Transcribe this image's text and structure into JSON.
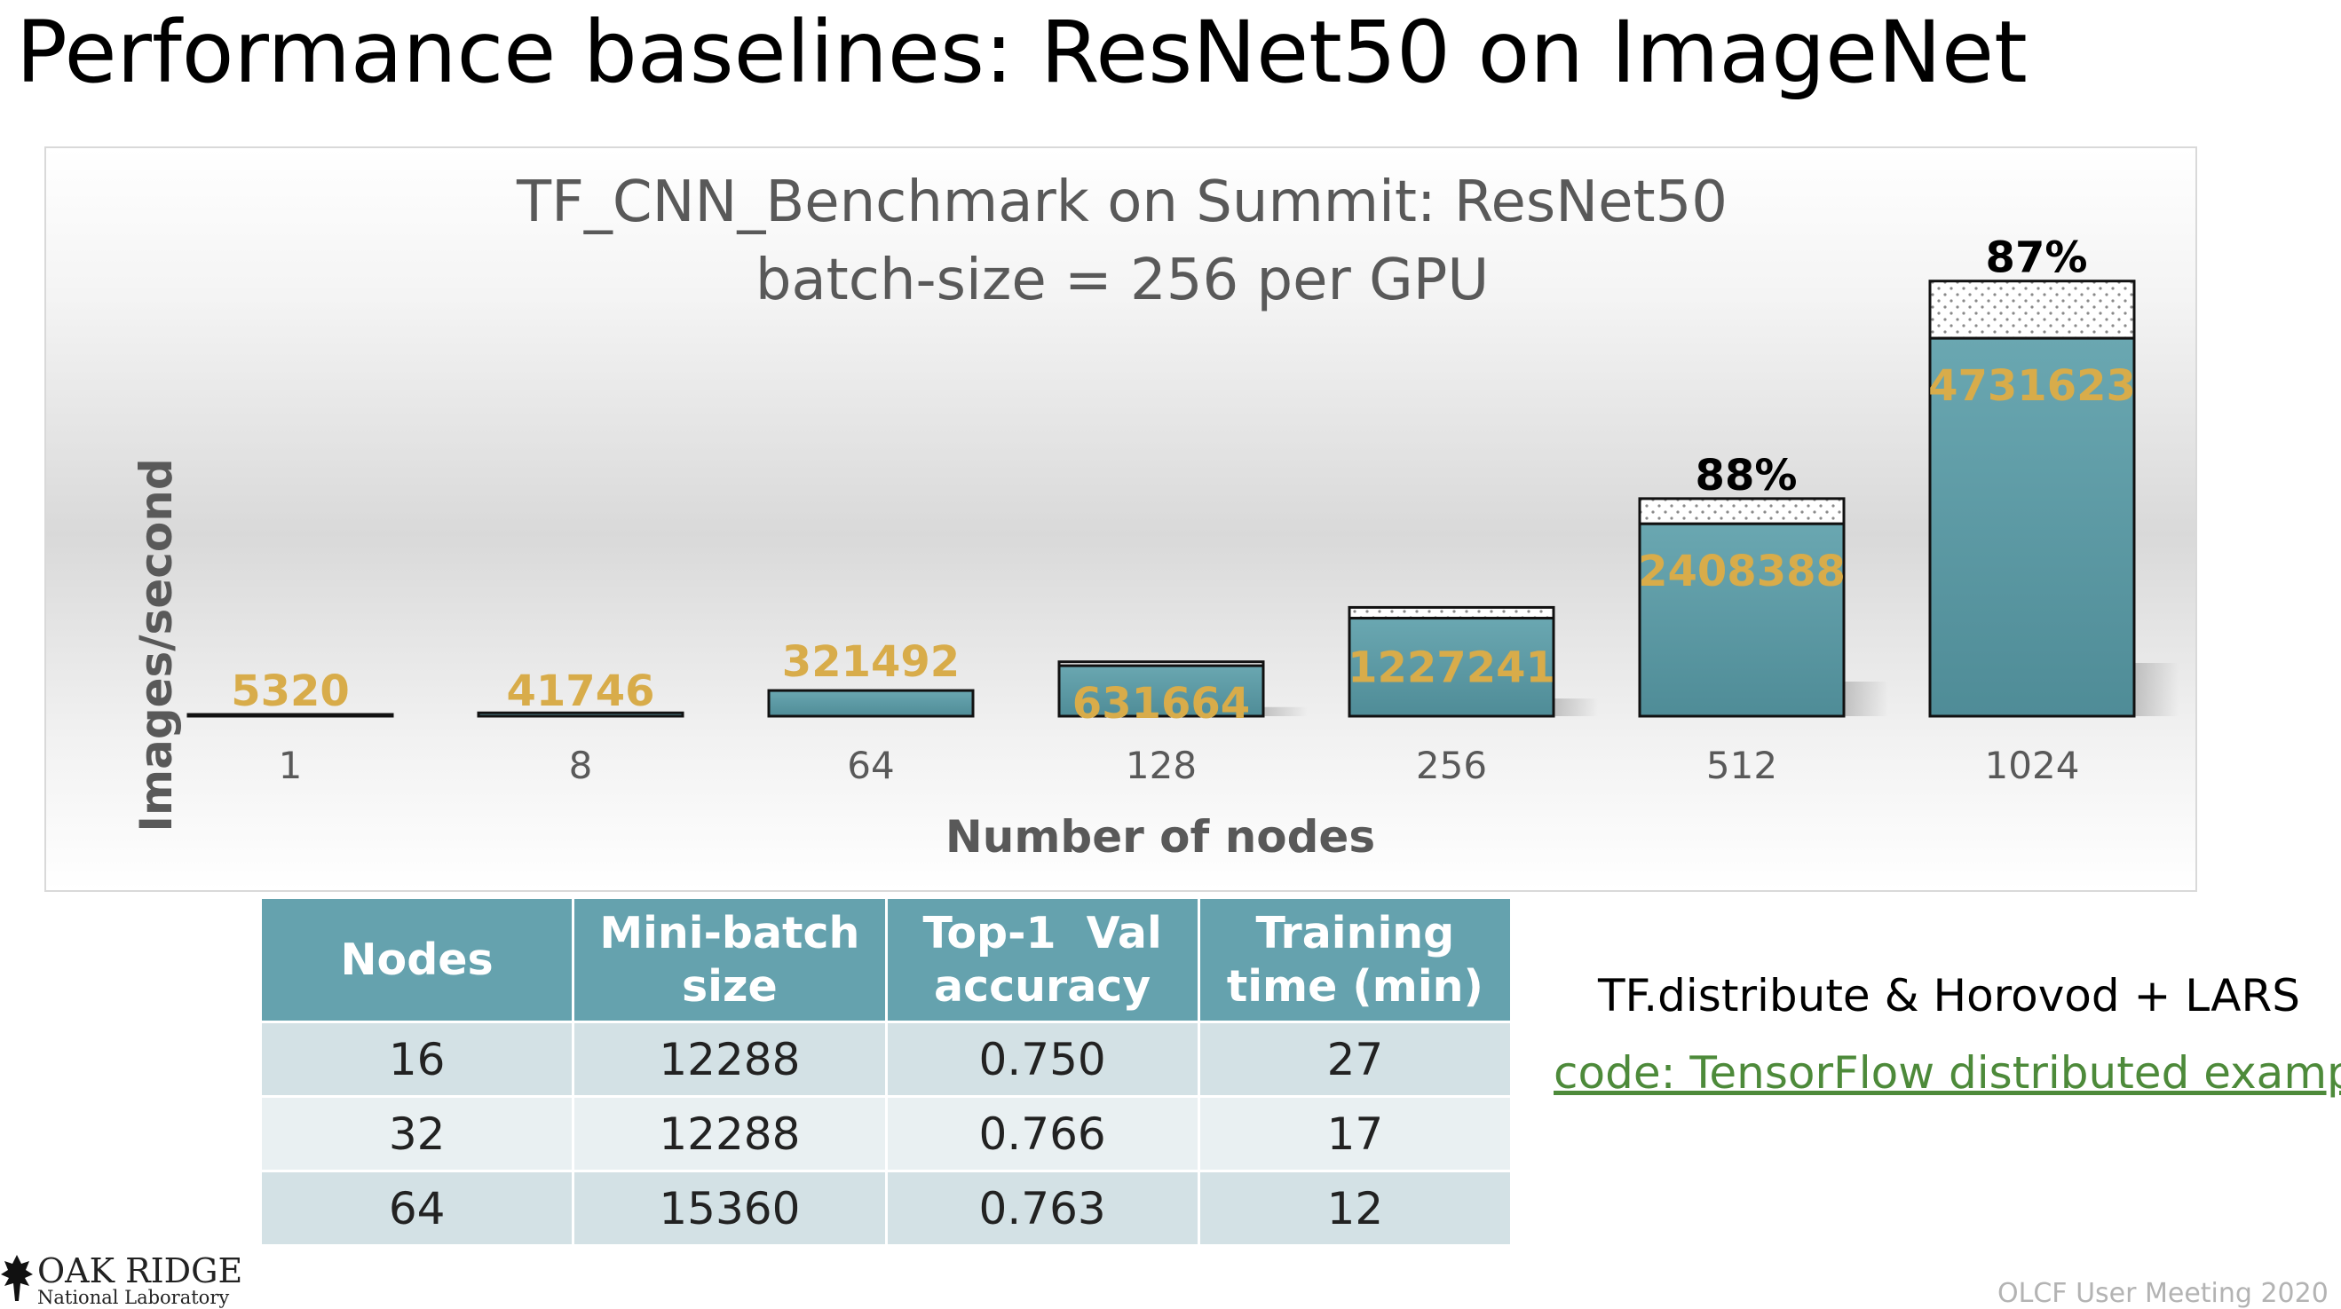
{
  "slide": {
    "title": "Performance baselines: ResNet50 on ImageNet",
    "footer": "OLCF User Meeting 2020",
    "logo": {
      "name": "OAK RIDGE",
      "sub": "National Laboratory"
    }
  },
  "chart_data": {
    "type": "bar",
    "title": "TF_CNN_Benchmark on Summit: ResNet50",
    "subtitle": "batch-size = 256 per GPU",
    "xlabel": "Number of nodes",
    "ylabel": "Images/second",
    "categories": [
      "1",
      "8",
      "64",
      "128",
      "256",
      "512",
      "1024"
    ],
    "values": [
      5320,
      41746,
      321492,
      631664,
      1227241,
      2408388,
      4731623
    ],
    "ideal_values": [
      5320,
      42560,
      340480,
      680960,
      1361920,
      2723840,
      5447680
    ],
    "efficiency_labels": [
      "",
      "",
      "",
      "",
      "",
      "88%",
      "87%"
    ],
    "ylim": [
      0,
      5500000
    ],
    "grid": false,
    "colors": {
      "bar": "#5f9ea8",
      "value_label": "#d8ac4a",
      "ideal_fill": "#ffffff"
    }
  },
  "table": {
    "headers": [
      [
        "Nodes"
      ],
      [
        "Mini-batch",
        "size"
      ],
      [
        "Top-1  Val",
        "accuracy"
      ],
      [
        "Training",
        "time (min)"
      ]
    ],
    "rows": [
      [
        "16",
        "12288",
        "0.750",
        "27"
      ],
      [
        "32",
        "12288",
        "0.766",
        "17"
      ],
      [
        "64",
        "15360",
        "0.763",
        "12"
      ]
    ]
  },
  "side": {
    "note": "TF.distribute & Horovod + LARS",
    "link": "code: TensorFlow distributed example"
  }
}
